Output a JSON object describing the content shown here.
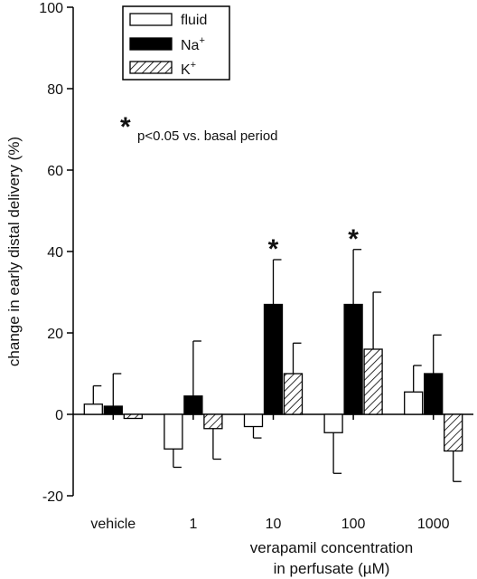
{
  "chart_data": {
    "type": "bar",
    "xlabel": "verapamil concentration",
    "xlabel_line2": "in perfusate (µM)",
    "ylabel": "change in early distal delivery (%)",
    "ylim": [
      -20,
      100
    ],
    "yticks": [
      -20,
      0,
      20,
      40,
      60,
      80,
      100
    ],
    "categories": [
      "vehicle",
      "1",
      "10",
      "100",
      "1000"
    ],
    "series": [
      {
        "name": "fluid",
        "values": [
          2.5,
          -8.5,
          -3,
          -4.5,
          5.5
        ],
        "errors": [
          4.5,
          4.5,
          2.8,
          10,
          6.5
        ],
        "pattern": "open"
      },
      {
        "name": "Na+",
        "values": [
          2,
          4.5,
          27,
          27,
          10
        ],
        "errors": [
          8,
          13.5,
          11,
          13.5,
          9.5
        ],
        "pattern": "solid"
      },
      {
        "name": "K+",
        "values": [
          -1,
          -3.5,
          10,
          16,
          -9
        ],
        "errors": [
          0,
          7.5,
          7.5,
          14,
          7.5
        ],
        "pattern": "hatched"
      }
    ],
    "significance": [
      {
        "category": "10",
        "series": "Na+",
        "marker": "*"
      },
      {
        "category": "100",
        "series": "Na+",
        "marker": "*"
      }
    ],
    "annotation": {
      "marker": "*",
      "text": "p<0.05 vs. basal period"
    },
    "legend": {
      "position": "top-left",
      "items": [
        "fluid",
        "Na",
        "K"
      ],
      "superscript": "+"
    },
    "grid": false
  }
}
